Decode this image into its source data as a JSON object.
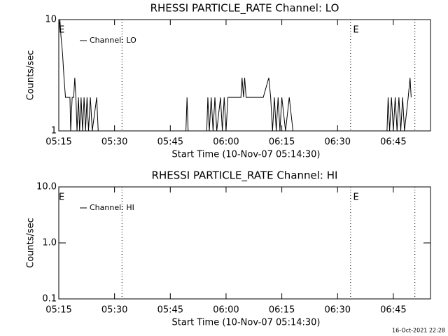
{
  "chart_data": [
    {
      "type": "line",
      "title": "RHESSI PARTICLE_RATE Channel: LO",
      "x_label": "Start Time (10-Nov-07 05:14:30)",
      "y_label": "Counts/sec",
      "log_y": true,
      "legend": "top-left",
      "xlim": [
        0,
        100
      ],
      "xticks": [
        {
          "value": 0,
          "label": "05:15"
        },
        {
          "value": 15,
          "label": "05:30"
        },
        {
          "value": 30,
          "label": "05:45"
        },
        {
          "value": 45,
          "label": "06:00"
        },
        {
          "value": 60,
          "label": "06:15"
        },
        {
          "value": 75,
          "label": "06:30"
        },
        {
          "value": 90,
          "label": "06:45"
        }
      ],
      "ylim": [
        1,
        10
      ],
      "yticks": [
        1,
        10
      ],
      "vlines": [
        17,
        78.5,
        95.8
      ],
      "annotations": [
        {
          "text": "E",
          "x": 0
        },
        {
          "text": "E",
          "x": 79.2
        }
      ],
      "series": [
        {
          "name": "Channel: LO",
          "color": "#000000",
          "x": [
            0,
            0.3,
            0.6,
            1,
            1.4,
            1.8,
            3,
            3.2,
            3.6,
            4,
            4.3,
            4.6,
            4.9,
            5.3,
            5.6,
            6,
            6.4,
            6.8,
            7.2,
            7.6,
            8,
            8.5,
            9,
            10.2,
            10.6,
            34.2,
            34.5,
            34.8,
            39.8,
            40.1,
            40.5,
            41,
            41.5,
            42,
            42.5,
            43.5,
            44,
            44.5,
            45,
            45.5,
            49,
            49.3,
            49.7,
            50,
            50.4,
            55,
            56.5,
            57,
            57.5,
            58,
            58.5,
            59,
            59.5,
            60,
            61,
            62,
            63,
            88.3,
            88.6,
            89,
            89.5,
            90,
            90.5,
            91,
            91.5,
            92,
            92.5,
            93,
            94,
            94.5,
            94.8
          ],
          "values": [
            8,
            10,
            7,
            5,
            3,
            2,
            2,
            1,
            2,
            2,
            3,
            2,
            1,
            2,
            1,
            2,
            1,
            2,
            1,
            2,
            1,
            2,
            1,
            2,
            1,
            1,
            2,
            1,
            1,
            2,
            1,
            2,
            1,
            2,
            1,
            2,
            1,
            2,
            1,
            2,
            2,
            3,
            2,
            3,
            2,
            2,
            3,
            2,
            1,
            2,
            1,
            2,
            1,
            2,
            1,
            2,
            1,
            1,
            2,
            1,
            2,
            1,
            2,
            1,
            2,
            1,
            2,
            1,
            2,
            3,
            2
          ]
        }
      ]
    },
    {
      "type": "line",
      "title": "RHESSI PARTICLE_RATE Channel: HI",
      "x_label": "Start Time (10-Nov-07 05:14:30)",
      "y_label": "Counts/sec",
      "log_y": true,
      "legend": "top-left",
      "xlim": [
        0,
        100
      ],
      "xticks": [
        {
          "value": 0,
          "label": "05:15"
        },
        {
          "value": 15,
          "label": "05:30"
        },
        {
          "value": 30,
          "label": "05:45"
        },
        {
          "value": 45,
          "label": "06:00"
        },
        {
          "value": 60,
          "label": "06:15"
        },
        {
          "value": 75,
          "label": "06:30"
        },
        {
          "value": 90,
          "label": "06:45"
        }
      ],
      "ylim": [
        0.1,
        10
      ],
      "yticks": [
        {
          "value": 0.1,
          "label": "0.1"
        },
        {
          "value": 1,
          "label": "1.0"
        },
        {
          "value": 10,
          "label": "10.0"
        }
      ],
      "vlines": [
        17,
        78.5,
        95.8
      ],
      "annotations": [
        {
          "text": "E",
          "x": 0
        },
        {
          "text": "E",
          "x": 79.2
        }
      ],
      "series": [
        {
          "name": "Channel: HI",
          "color": "#000000",
          "x": [],
          "values": []
        }
      ]
    }
  ],
  "footer": "16-Oct-2021 22:28"
}
